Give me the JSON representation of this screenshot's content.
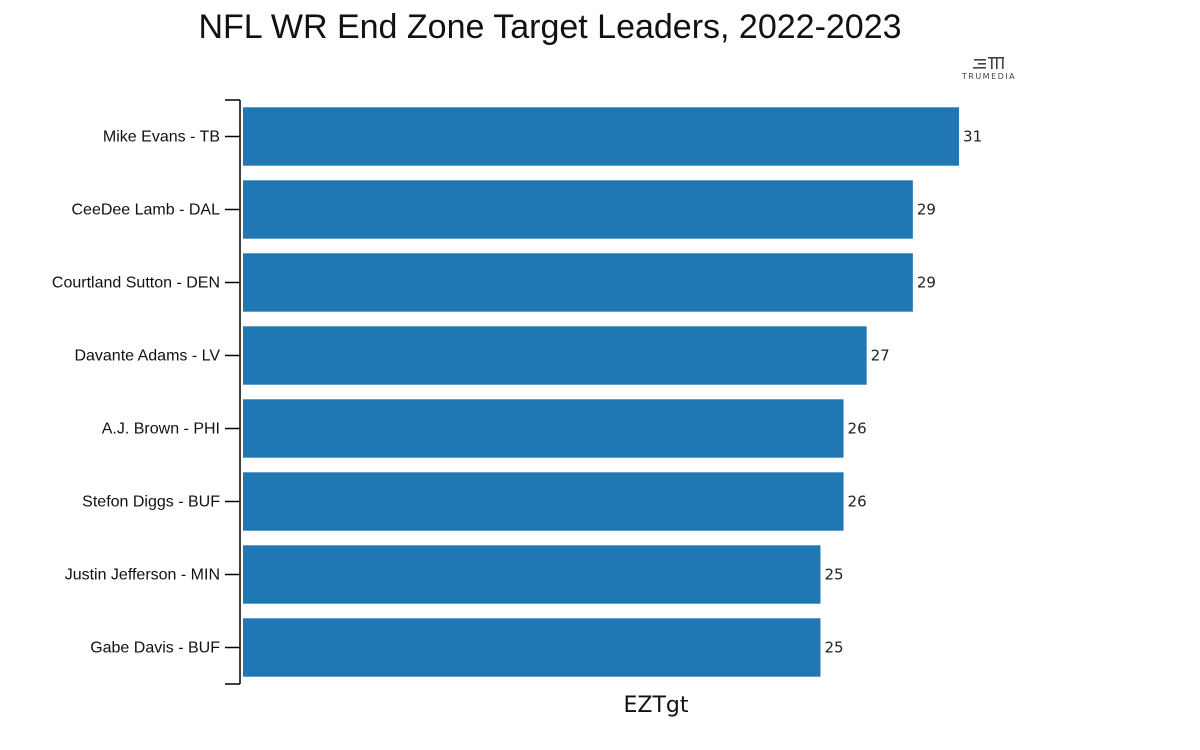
{
  "chart_data": {
    "type": "bar",
    "orientation": "horizontal",
    "title": "NFL WR End Zone Target Leaders, 2022-2023",
    "xlabel": "EZTgt",
    "ylabel": "",
    "categories": [
      "Mike Evans - TB",
      "CeeDee Lamb - DAL",
      "Courtland Sutton - DEN",
      "Davante Adams - LV",
      "A.J. Brown - PHI",
      "Stefon Diggs - BUF",
      "Justin Jefferson - MIN",
      "Gabe Davis - BUF"
    ],
    "values": [
      31,
      29,
      29,
      27,
      26,
      26,
      25,
      25
    ],
    "xlim": [
      0,
      39.7
    ],
    "grid": false,
    "bar_color": "#1f77b4",
    "data_labels": [
      "31",
      "29",
      "29",
      "27",
      "26",
      "26",
      "25",
      "25"
    ]
  },
  "brand": {
    "name": "TRUMEDIA",
    "icon": "trumedia-logo-icon"
  }
}
